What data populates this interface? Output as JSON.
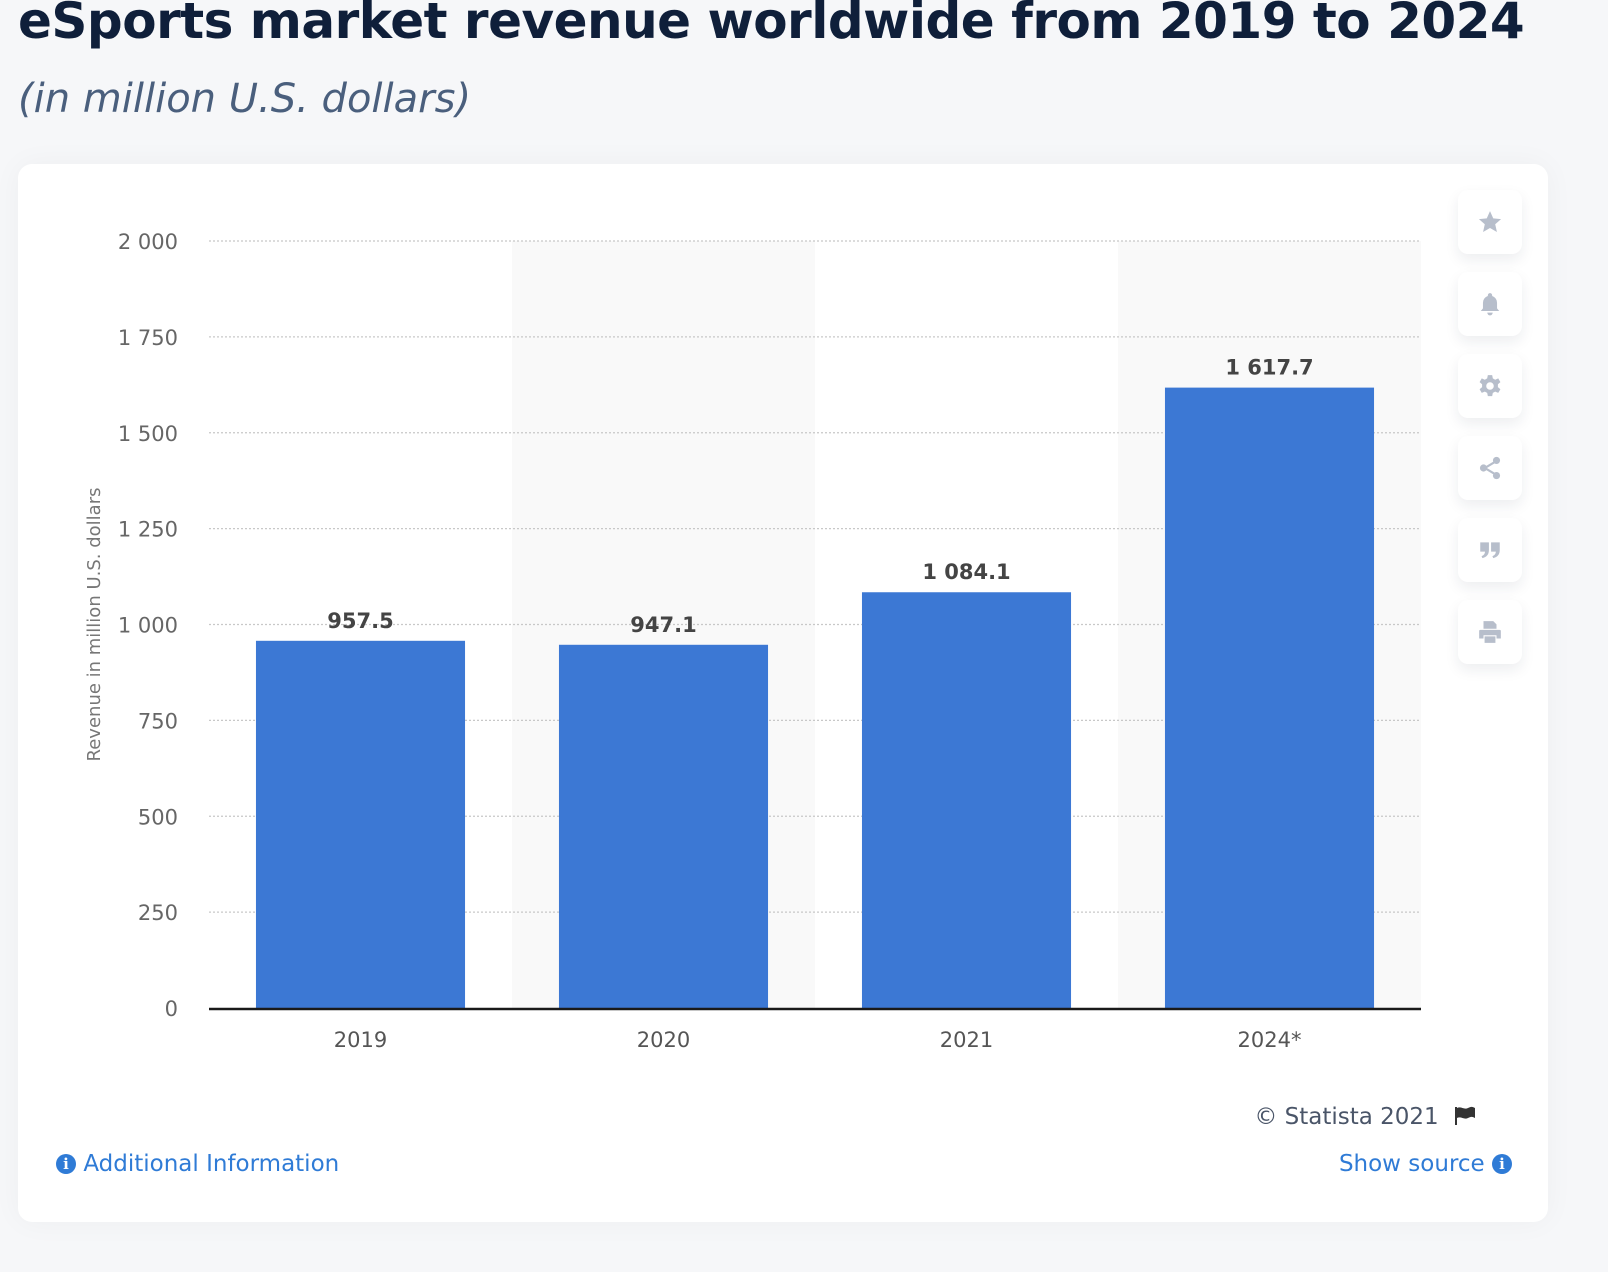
{
  "header": {
    "title": "eSports market revenue worldwide from 2019 to 2024",
    "subtitle": "(in million U.S. dollars)"
  },
  "toolbar": [
    {
      "name": "favorite",
      "icon": "star-icon"
    },
    {
      "name": "notification",
      "icon": "bell-icon"
    },
    {
      "name": "settings",
      "icon": "gear-icon"
    },
    {
      "name": "share",
      "icon": "share-icon"
    },
    {
      "name": "cite",
      "icon": "quote-icon"
    },
    {
      "name": "print",
      "icon": "printer-icon"
    }
  ],
  "footer": {
    "copyright": "© Statista 2021",
    "show_source": "Show source",
    "additional_info": "Additional Information"
  },
  "colors": {
    "bar": "#3c78d4",
    "title": "#0f1f3a",
    "link": "#2f7bd6"
  },
  "chart_data": {
    "type": "bar",
    "title": "eSports market revenue worldwide from 2019 to 2024",
    "subtitle": "(in million U.S. dollars)",
    "xlabel": "",
    "ylabel": "Revenue in million U.S. dollars",
    "categories": [
      "2019",
      "2020",
      "2021",
      "2024*"
    ],
    "values": [
      957.5,
      947.1,
      1084.1,
      1617.7
    ],
    "value_labels": [
      "957.5",
      "947.1",
      "1 084.1",
      "1 617.7"
    ],
    "ylim": [
      0,
      2000
    ],
    "yticks": [
      0,
      250,
      500,
      750,
      1000,
      1250,
      1500,
      1750,
      2000
    ],
    "ytick_labels": [
      "0",
      "250",
      "500",
      "750",
      "1 000",
      "1 250",
      "1 500",
      "1 750",
      "2 000"
    ],
    "grid": true,
    "legend": "none"
  }
}
